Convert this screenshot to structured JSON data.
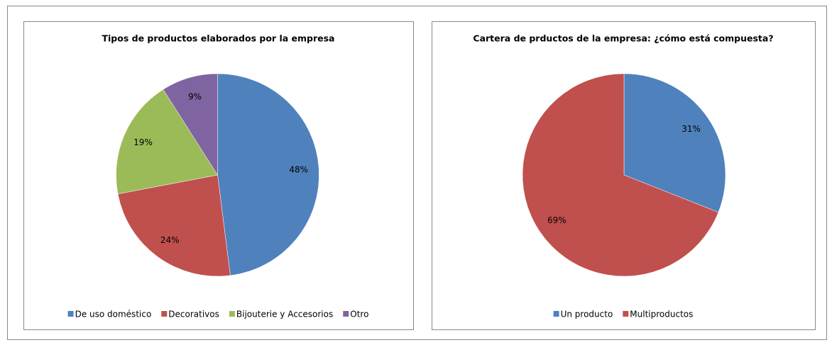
{
  "chart_data": [
    {
      "type": "pie",
      "title": "Tipos de productos elaborados por la empresa",
      "categories": [
        "De uso doméstico",
        "Decorativos",
        "Bijouterie y Accesorios",
        "Otro"
      ],
      "values": [
        48,
        24,
        19,
        9
      ],
      "value_labels": [
        "48%",
        "24%",
        "19%",
        "9%"
      ],
      "colors": [
        "#4f81bd",
        "#c0504d",
        "#9bbb59",
        "#8064a2"
      ],
      "legend": "bottom"
    },
    {
      "type": "pie",
      "title": "Cartera de prductos de la empresa: ¿cómo está compuesta?",
      "categories": [
        "Un producto",
        "Multiproductos"
      ],
      "values": [
        31,
        69
      ],
      "value_labels": [
        "31%",
        "69%"
      ],
      "colors": [
        "#4f81bd",
        "#c0504d"
      ],
      "legend": "bottom"
    }
  ]
}
